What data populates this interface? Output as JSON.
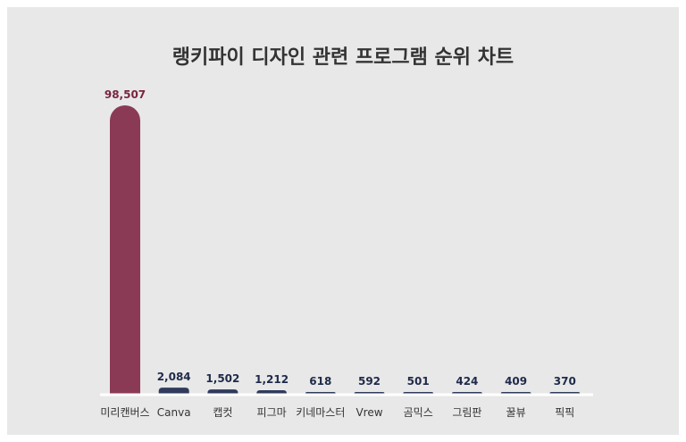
{
  "chart_data": {
    "type": "bar",
    "title": "랭키파이 디자인 관련 프로그램 순위 차트",
    "categories": [
      "미리캔버스",
      "Canva",
      "캡컷",
      "피그마",
      "키네마스터",
      "Vrew",
      "곰믹스",
      "그림판",
      "꿀뷰",
      "픽픽"
    ],
    "values": [
      98507,
      2084,
      1502,
      1212,
      618,
      592,
      501,
      424,
      409,
      370
    ],
    "value_labels": [
      "98,507",
      "2,084",
      "1,502",
      "1,212",
      "618",
      "592",
      "501",
      "424",
      "409",
      "370"
    ],
    "ylim": [
      0,
      98507
    ],
    "grid": false,
    "colors": {
      "highlight": "#8b3a56",
      "highlight_label": "#7a2540",
      "bar": "#2f3a5c",
      "label": "#1f2a4a",
      "baseline": "#ffffff"
    }
  }
}
